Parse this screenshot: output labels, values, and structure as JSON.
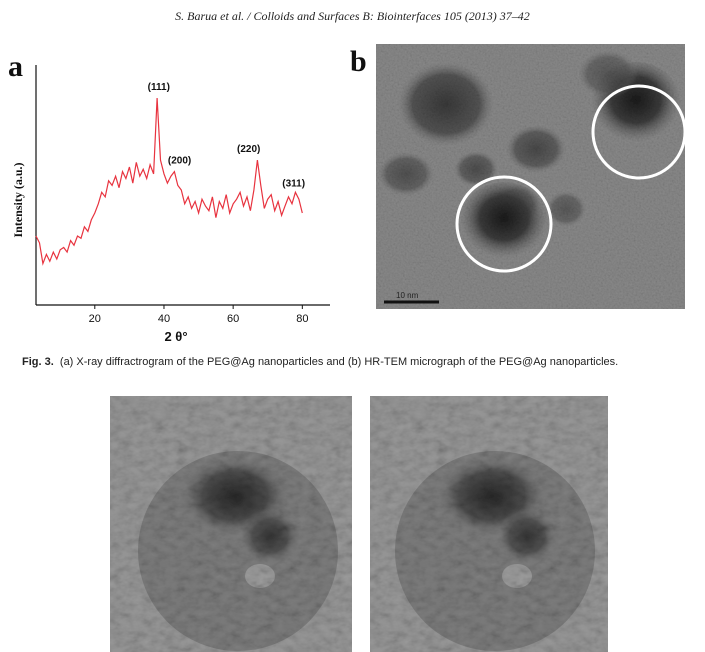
{
  "header": {
    "citation": "S. Barua et al. / Colloids and Surfaces B: Biointerfaces 105 (2013) 37–42"
  },
  "figure": {
    "panel_a_label": "a",
    "panel_b_label": "b",
    "caption_label": "Fig. 3.",
    "caption_text": "(a) X-ray diffractrogram of the PEG@Ag nanoparticles and (b) HR-TEM micrograph of the PEG@Ag nanoparticles.",
    "scale_bar_label": "10 nm"
  },
  "colors": {
    "trace": "#e8333f",
    "axis": "#111111",
    "tem_bg": "#7d7d7d",
    "circle": "#ffffff"
  },
  "chart_data": {
    "type": "line",
    "ylabel": "Intensity (a.u.)",
    "xlabel": "2 θ°",
    "xlim": [
      3,
      88
    ],
    "ylim": [
      0,
      100
    ],
    "x_ticks": [
      20,
      40,
      60,
      80
    ],
    "y_ticks_labeled": false,
    "grid": false,
    "series": [
      {
        "x": [
          3,
          4,
          5,
          6,
          7,
          8,
          9,
          10,
          11,
          12,
          13,
          14,
          15,
          16,
          17,
          18,
          19,
          20,
          21,
          22,
          23,
          24,
          25,
          26,
          27,
          28,
          29,
          30,
          31,
          32,
          33,
          34,
          35,
          36,
          37,
          38,
          39,
          40,
          41,
          42,
          43,
          44,
          45,
          46,
          47,
          48,
          49,
          50,
          51,
          52,
          53,
          54,
          55,
          56,
          57,
          58,
          59,
          60,
          61,
          62,
          63,
          64,
          65,
          66,
          67,
          68,
          69,
          70,
          71,
          72,
          73,
          74,
          75,
          76,
          77,
          78,
          79,
          80
        ],
        "y": [
          30,
          27,
          18,
          22,
          19,
          23,
          20,
          24,
          25,
          23,
          28,
          26,
          30,
          29,
          34,
          32,
          37,
          40,
          44,
          49,
          47,
          54,
          52,
          56,
          51,
          58,
          55,
          60,
          53,
          62,
          56,
          59,
          55,
          61,
          57,
          90,
          63,
          57,
          53,
          56,
          58,
          52,
          50,
          44,
          47,
          42,
          45,
          40,
          46,
          43,
          41,
          47,
          38,
          45,
          42,
          48,
          40,
          44,
          46,
          49,
          43,
          47,
          41,
          50,
          63,
          52,
          42,
          46,
          48,
          41,
          45,
          39,
          43,
          47,
          44,
          49,
          46,
          40
        ]
      }
    ],
    "annotations": [
      {
        "text": "(111)",
        "x": 38.5,
        "y": 90
      },
      {
        "text": "(200)",
        "x": 44.5,
        "y": 58
      },
      {
        "text": "(220)",
        "x": 64.5,
        "y": 63
      },
      {
        "text": "(311)",
        "x": 77.5,
        "y": 48
      }
    ]
  }
}
